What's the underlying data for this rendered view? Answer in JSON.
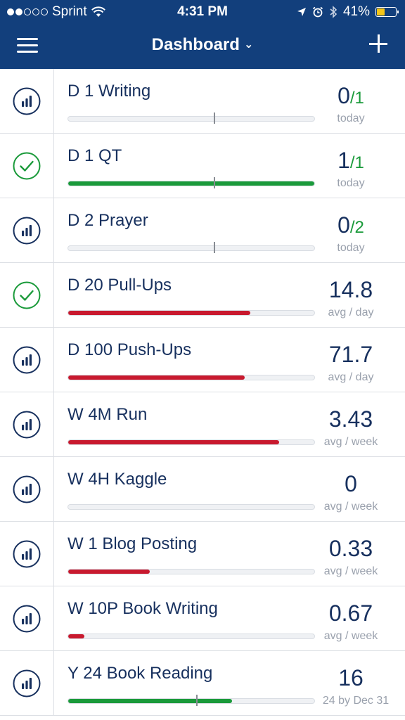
{
  "status_bar": {
    "carrier": "Sprint",
    "time": "4:31 PM",
    "battery_percent": "41%",
    "battery_level": 0.41,
    "signal_dots_filled": 2,
    "signal_dots_total": 5
  },
  "nav": {
    "title": "Dashboard",
    "title_chevron": "chevron-down-icon",
    "menu_icon": "hamburger-menu-icon",
    "add_icon": "plus-icon"
  },
  "colors": {
    "nav_background": "#123f7c",
    "complete_green": "#1a9a3a",
    "progress_red": "#c8192e",
    "text_navy": "#17305e",
    "subtle_gray": "#9aa1ad"
  },
  "goals": [
    {
      "name": "D 1 Writing",
      "icon": "stats-icon",
      "value": "0",
      "target": "/1",
      "sub": "today",
      "progress": 0,
      "bar_color": "none",
      "marker": 0.59
    },
    {
      "name": "D 1 QT",
      "icon": "check-circle-icon",
      "value": "1",
      "target": "/1",
      "sub": "today",
      "progress": 1,
      "bar_color": "green",
      "marker": 0.59
    },
    {
      "name": "D 2 Prayer",
      "icon": "stats-icon",
      "value": "0",
      "target": "/2",
      "sub": "today",
      "progress": 0,
      "bar_color": "none",
      "marker": 0.59
    },
    {
      "name": "D 20 Pull-Ups",
      "icon": "check-circle-icon",
      "value": "14.8",
      "target": "",
      "sub": "avg / day",
      "progress": 0.74,
      "bar_color": "red",
      "marker": null
    },
    {
      "name": "D 100 Push-Ups",
      "icon": "stats-icon",
      "value": "71.7",
      "target": "",
      "sub": "avg / day",
      "progress": 0.717,
      "bar_color": "red",
      "marker": null
    },
    {
      "name": "W 4M Run",
      "icon": "stats-icon",
      "value": "3.43",
      "target": "",
      "sub": "avg / week",
      "progress": 0.857,
      "bar_color": "red",
      "marker": null
    },
    {
      "name": "W 4H Kaggle",
      "icon": "stats-icon",
      "value": "0",
      "target": "",
      "sub": "avg / week",
      "progress": 0,
      "bar_color": "none",
      "marker": null
    },
    {
      "name": "W 1 Blog Posting",
      "icon": "stats-icon",
      "value": "0.33",
      "target": "",
      "sub": "avg / week",
      "progress": 0.33,
      "bar_color": "red",
      "marker": null
    },
    {
      "name": "W 10P Book Writing",
      "icon": "stats-icon",
      "value": "0.67",
      "target": "",
      "sub": "avg / week",
      "progress": 0.067,
      "bar_color": "red",
      "marker": null
    },
    {
      "name": "Y 24 Book Reading",
      "icon": "stats-icon",
      "value": "16",
      "target": "",
      "sub": "24 by Dec 31",
      "progress": 0.667,
      "bar_color": "green",
      "marker": 0.52
    }
  ]
}
